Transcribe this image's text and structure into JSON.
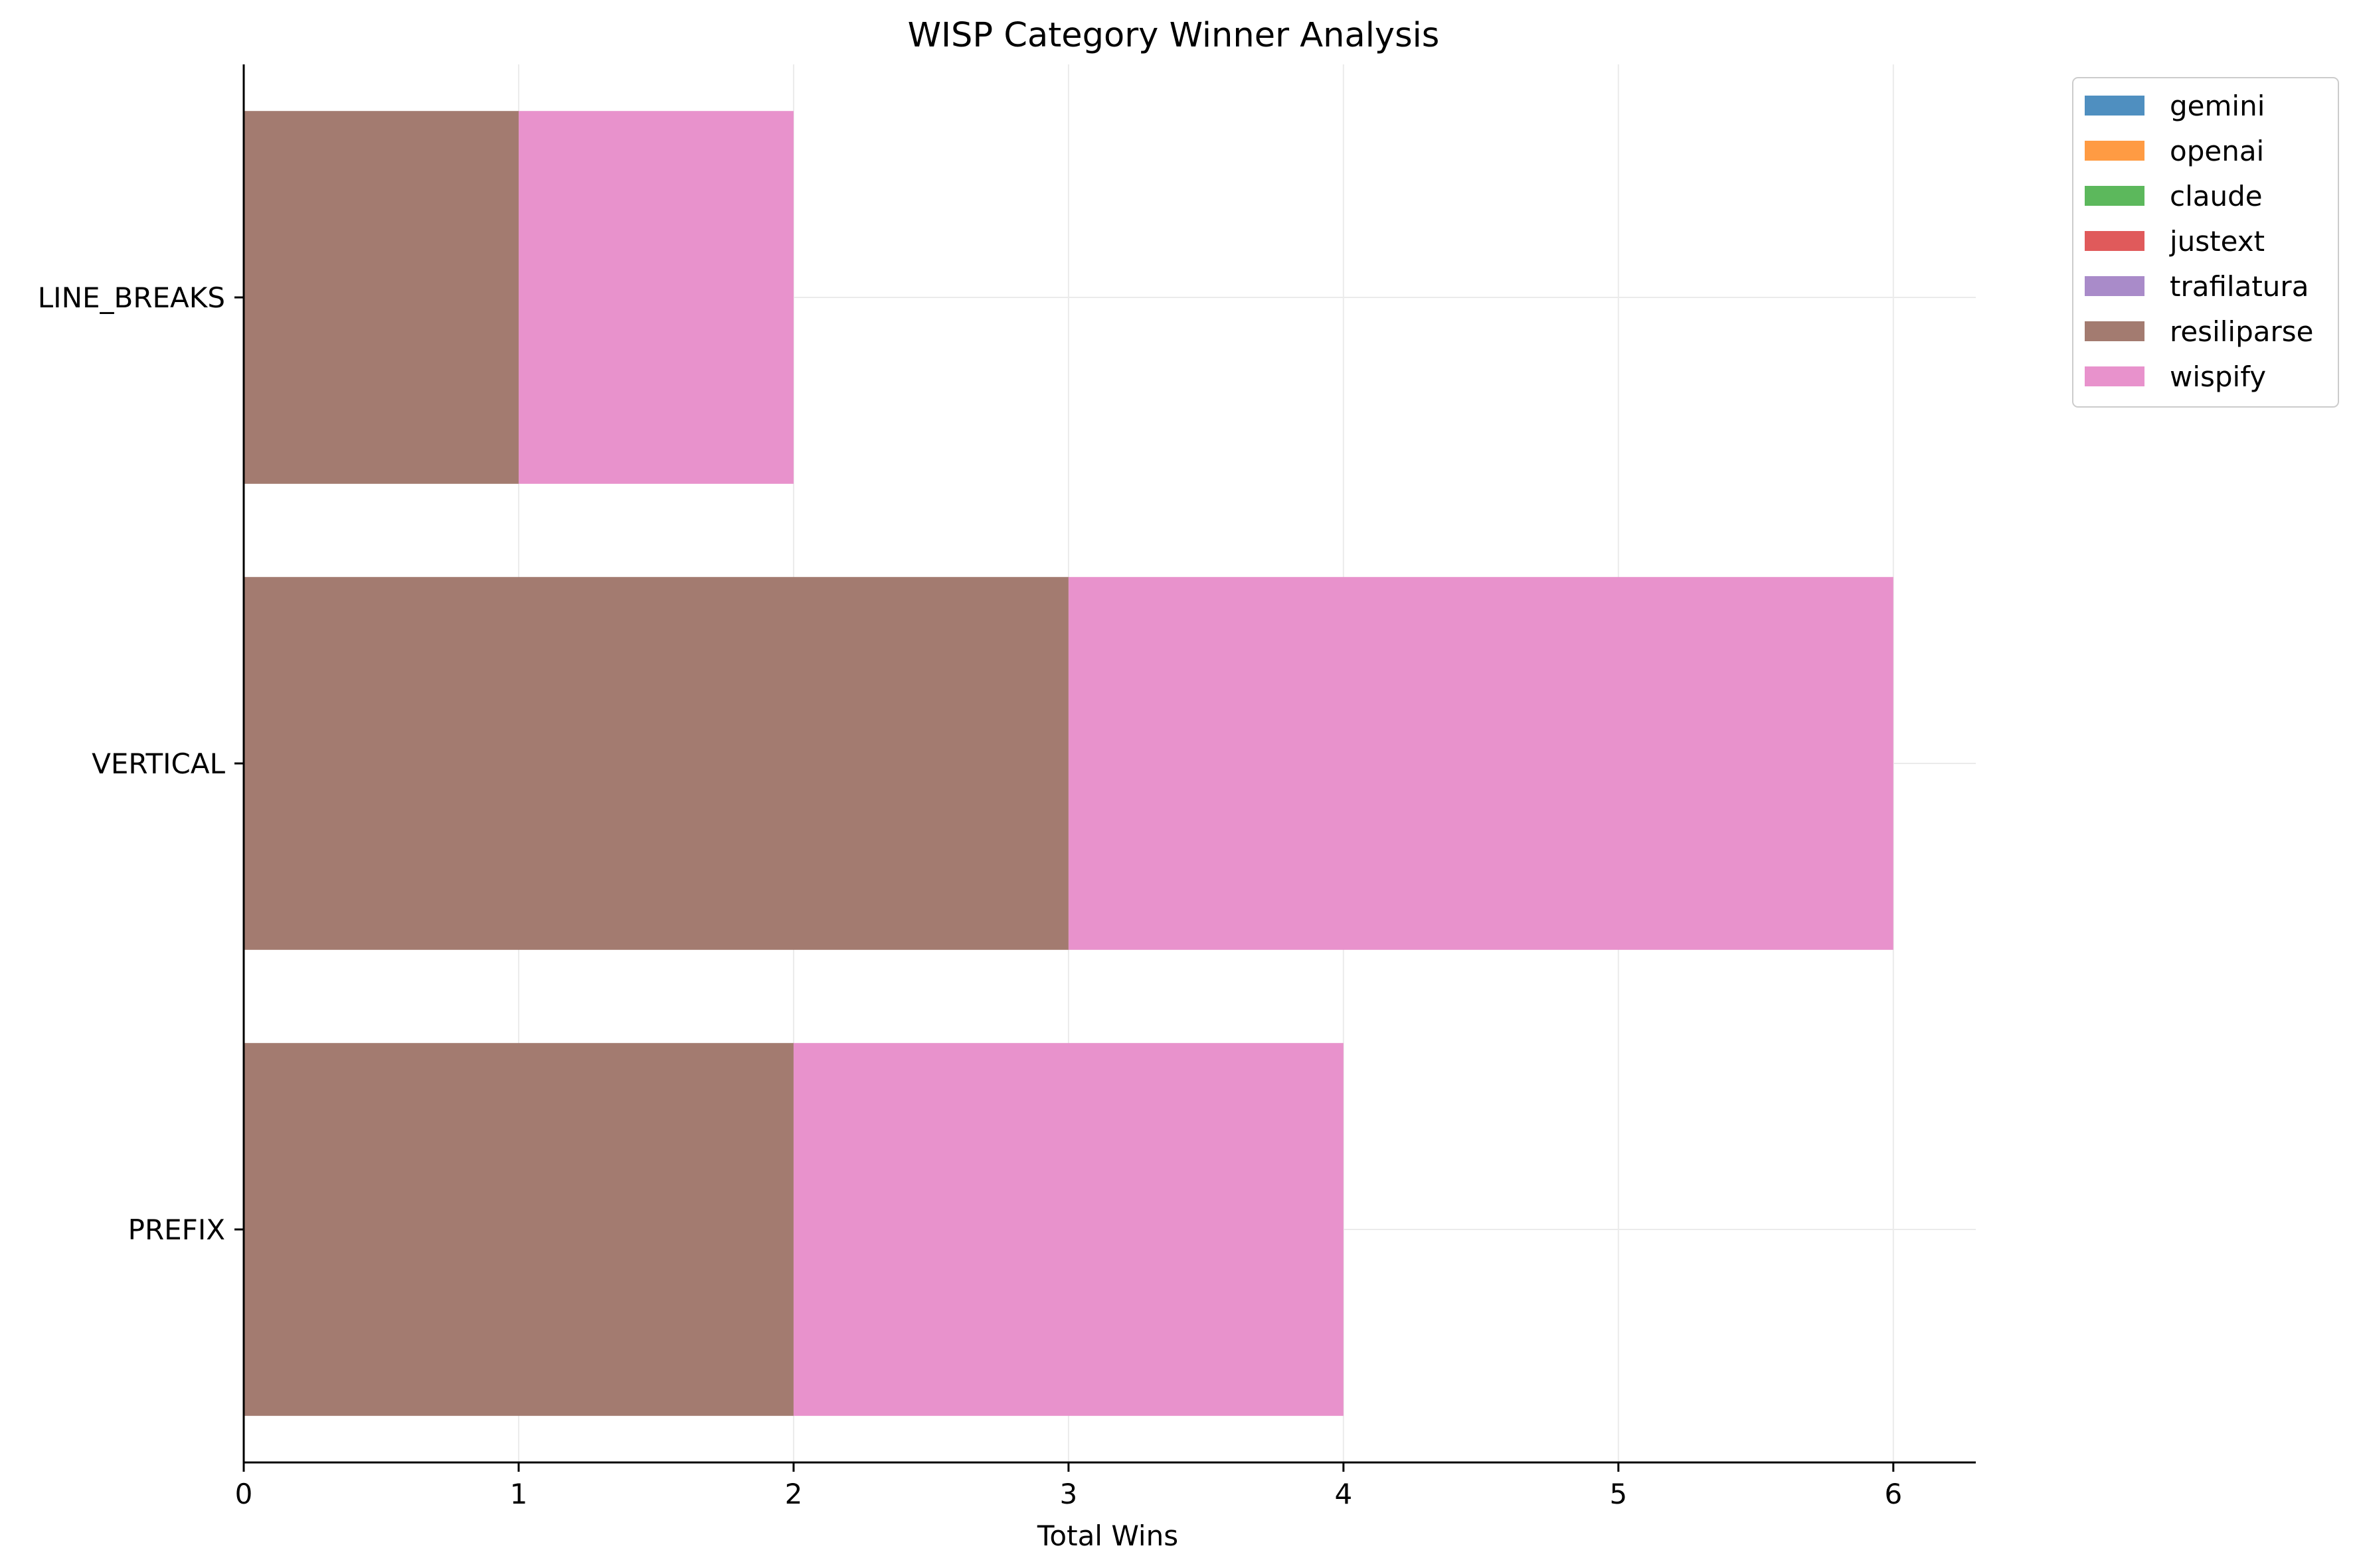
{
  "chart_data": {
    "type": "bar",
    "orientation": "horizontal",
    "stacked": true,
    "title": "WISP Category Winner Analysis",
    "xlabel": "Total Wins",
    "ylabel": "",
    "categories": [
      "PREFIX",
      "VERTICAL",
      "LINE_BREAKS"
    ],
    "series": [
      {
        "name": "gemini",
        "color": "#4f8fc0",
        "values": [
          0,
          0,
          0
        ]
      },
      {
        "name": "openai",
        "color": "#ff9b43",
        "values": [
          0,
          0,
          0
        ]
      },
      {
        "name": "claude",
        "color": "#5cb85c",
        "values": [
          0,
          0,
          0
        ]
      },
      {
        "name": "justext",
        "color": "#e05a5b",
        "values": [
          0,
          0,
          0
        ]
      },
      {
        "name": "trafilatura",
        "color": "#a98bc9",
        "values": [
          0,
          0,
          0
        ]
      },
      {
        "name": "resiliparse",
        "color": "#a37b70",
        "values": [
          2,
          3,
          1
        ]
      },
      {
        "name": "wispify",
        "color": "#e892cc",
        "values": [
          2,
          3,
          1
        ]
      }
    ],
    "xlim": [
      0,
      6.3
    ],
    "xticks": [
      "0",
      "1",
      "2",
      "3",
      "4",
      "5",
      "6"
    ],
    "grid": true,
    "legend_position": "outside-top-right"
  }
}
